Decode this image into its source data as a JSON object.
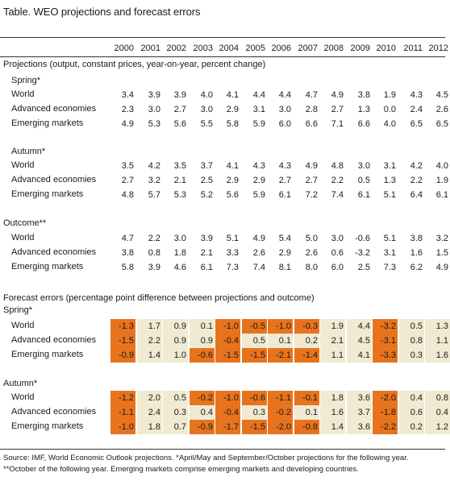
{
  "title": "Table. WEO projections and forecast errors",
  "years": [
    "2000",
    "2001",
    "2002",
    "2003",
    "2004",
    "2005",
    "2006",
    "2007",
    "2008",
    "2009",
    "2010",
    "2011",
    "2012"
  ],
  "colors": {
    "negative": "#e8731d",
    "positive": "#f0ead2"
  },
  "projections": {
    "heading": "Projections (output, constant prices, year-on-year, percent change)",
    "spring": {
      "label": "Spring*",
      "rows": [
        {
          "label": "World",
          "values": [
            "3.4",
            "3.9",
            "3.9",
            "4.0",
            "4.1",
            "4.4",
            "4.4",
            "4.7",
            "4.9",
            "3.8",
            "1.9",
            "4.3",
            "4.5"
          ]
        },
        {
          "label": "Advanced economies",
          "values": [
            "2.3",
            "3.0",
            "2.7",
            "3.0",
            "2.9",
            "3.1",
            "3.0",
            "2.8",
            "2.7",
            "1.3",
            "0.0",
            "2.4",
            "2.6"
          ]
        },
        {
          "label": "Emerging markets",
          "values": [
            "4.9",
            "5.3",
            "5.6",
            "5.5",
            "5.8",
            "5.9",
            "6.0",
            "6.6",
            "7.1",
            "6.6",
            "4.0",
            "6.5",
            "6.5"
          ]
        }
      ]
    },
    "autumn": {
      "label": "Autumn*",
      "rows": [
        {
          "label": "World",
          "values": [
            "3.5",
            "4.2",
            "3.5",
            "3.7",
            "4.1",
            "4.3",
            "4.3",
            "4.9",
            "4.8",
            "3.0",
            "3.1",
            "4.2",
            "4.0"
          ]
        },
        {
          "label": "Advanced economies",
          "values": [
            "2.7",
            "3.2",
            "2.1",
            "2.5",
            "2.9",
            "2.9",
            "2.7",
            "2.7",
            "2.2",
            "0.5",
            "1.3",
            "2.2",
            "1.9"
          ]
        },
        {
          "label": "Emerging markets",
          "values": [
            "4.8",
            "5.7",
            "5.3",
            "5.2",
            "5.6",
            "5.9",
            "6.1",
            "7.2",
            "7.4",
            "6.1",
            "5.1",
            "6.4",
            "6.1"
          ]
        }
      ]
    }
  },
  "outcome": {
    "label": "Outcome**",
    "rows": [
      {
        "label": "World",
        "values": [
          "4.7",
          "2.2",
          "3.0",
          "3.9",
          "5.1",
          "4.9",
          "5.4",
          "5.0",
          "3.0",
          "-0.6",
          "5.1",
          "3.8",
          "3.2"
        ]
      },
      {
        "label": "Advanced economies",
        "values": [
          "3.8",
          "0.8",
          "1.8",
          "2.1",
          "3.3",
          "2.6",
          "2.9",
          "2.6",
          "0.6",
          "-3.2",
          "3.1",
          "1.6",
          "1.5"
        ]
      },
      {
        "label": "Emerging markets",
        "values": [
          "5.8",
          "3.9",
          "4.6",
          "6.1",
          "7.3",
          "7.4",
          "8.1",
          "8.0",
          "6.0",
          "2.5",
          "7.3",
          "6.2",
          "4.9"
        ]
      }
    ]
  },
  "errors": {
    "heading": "Forecast errors (percentage point difference between projections and outcome)",
    "spring": {
      "label": "Spring*",
      "rows": [
        {
          "label": "World",
          "values": [
            "-1.3",
            "1.7",
            "0.9",
            "0.1",
            "-1.0",
            "-0.5",
            "-1.0",
            "-0.3",
            "1.9",
            "4.4",
            "-3.2",
            "0.5",
            "1.3"
          ]
        },
        {
          "label": "Advanced economies",
          "values": [
            "-1.5",
            "2.2",
            "0.9",
            "0.9",
            "-0.4",
            "0.5",
            "0.1",
            "0.2",
            "2.1",
            "4.5",
            "-3.1",
            "0.8",
            "1.1"
          ]
        },
        {
          "label": "Emerging markets",
          "values": [
            "-0.9",
            "1.4",
            "1.0",
            "-0.6",
            "-1.5",
            "-1.5",
            "-2.1",
            "-1.4",
            "1.1",
            "4.1",
            "-3.3",
            "0.3",
            "1.6"
          ]
        }
      ]
    },
    "autumn": {
      "label": "Autumn*",
      "rows": [
        {
          "label": "World",
          "values": [
            "-1.2",
            "2.0",
            "0.5",
            "-0.2",
            "-1.0",
            "-0.6",
            "-1.1",
            "-0.1",
            "1.8",
            "3.6",
            "-2.0",
            "0.4",
            "0.8"
          ]
        },
        {
          "label": "Advanced economies",
          "values": [
            "-1.1",
            "2.4",
            "0.3",
            "0.4",
            "-0.4",
            "0.3",
            "-0.2",
            "0.1",
            "1.6",
            "3.7",
            "-1.8",
            "0.6",
            "0.4"
          ]
        },
        {
          "label": "Emerging markets",
          "values": [
            "-1.0",
            "1.8",
            "0.7",
            "-0.9",
            "-1.7",
            "-1.5",
            "-2.0",
            "-0.8",
            "1.4",
            "3.6",
            "-2.2",
            "0.2",
            "1.2"
          ]
        }
      ]
    }
  },
  "footnotes": [
    "Source: IMF, World Economic Outlook projections. *April/May and September/October projections for the following year.",
    "**October of the following year.  Emerging markets comprise emerging markets and developing countries."
  ]
}
